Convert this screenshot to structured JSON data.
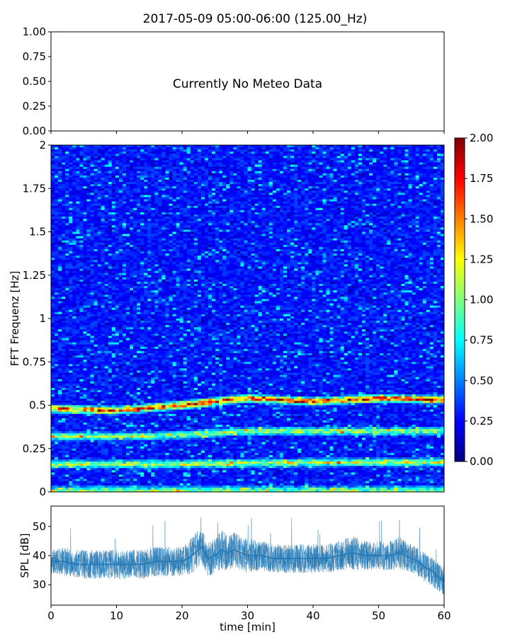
{
  "chart_data": [
    {
      "panel": "meteo",
      "type": "line",
      "title": "2017-05-09 05:00-06:00 (125.00_Hz)",
      "annotation": "Currently No Meteo Data",
      "ylim": [
        0,
        1
      ],
      "y_ticks": [
        "0.00",
        "0.25",
        "0.50",
        "0.75",
        "1.00"
      ],
      "series": []
    },
    {
      "panel": "spectrogram",
      "type": "heatmap",
      "ylabel": "FFT Frequenz [Hz]",
      "ylim": [
        0,
        2
      ],
      "xlim": [
        0,
        60
      ],
      "y_ticks": [
        "0",
        "0.25",
        "0.5",
        "0.75",
        "1",
        "1.25",
        "1.5",
        "1.75",
        "2"
      ],
      "colormap": "jet",
      "colorbar": {
        "range": [
          0,
          2
        ],
        "ticks": [
          "0.00",
          "0.25",
          "0.50",
          "0.75",
          "1.00",
          "1.25",
          "1.50",
          "1.75",
          "2.00"
        ]
      },
      "ridges": [
        {
          "freq_hz": [
            [
              0,
              0.48
            ],
            [
              10,
              0.47
            ],
            [
              20,
              0.5
            ],
            [
              30,
              0.54
            ],
            [
              40,
              0.52
            ],
            [
              50,
              0.54
            ],
            [
              60,
              0.53
            ]
          ],
          "intensity": 1.6
        },
        {
          "freq_hz": [
            [
              0,
              0.32
            ],
            [
              15,
              0.32
            ],
            [
              30,
              0.35
            ],
            [
              45,
              0.35
            ],
            [
              60,
              0.35
            ]
          ],
          "intensity": 0.9
        },
        {
          "freq_hz": [
            [
              0,
              0.16
            ],
            [
              20,
              0.16
            ],
            [
              40,
              0.17
            ],
            [
              60,
              0.17
            ]
          ],
          "intensity": 1.0
        },
        {
          "freq_hz": [
            [
              0,
              0.01
            ],
            [
              60,
              0.01
            ]
          ],
          "intensity": 0.8
        }
      ]
    },
    {
      "panel": "spl",
      "type": "line",
      "xlabel": "time [min]",
      "ylabel": "SPL [dB]",
      "xlim": [
        0,
        60
      ],
      "ylim": [
        23,
        57
      ],
      "x_ticks": [
        "0",
        "10",
        "20",
        "30",
        "40",
        "50",
        "60"
      ],
      "y_ticks": [
        "30",
        "40",
        "50"
      ],
      "line_color": "#1f77b4",
      "series": [
        {
          "x": [
            0,
            2,
            4,
            6,
            8,
            10,
            12,
            14,
            16,
            18,
            20,
            21,
            22,
            23,
            24,
            25,
            26,
            27,
            28,
            30,
            32,
            34,
            36,
            38,
            40,
            42,
            44,
            46,
            48,
            50,
            52,
            53,
            54,
            55,
            56,
            57,
            58,
            59,
            60
          ],
          "y": [
            38,
            38,
            37,
            37,
            37,
            37,
            37,
            37,
            38,
            38,
            38,
            39,
            41,
            43,
            39,
            40,
            42,
            41,
            42,
            40,
            40,
            39,
            39,
            39,
            39,
            39,
            40,
            41,
            40,
            40,
            40,
            41,
            40,
            39,
            38,
            36,
            35,
            33,
            31
          ],
          "spread": [
            4,
            5,
            5,
            5,
            5,
            5,
            5,
            5,
            5,
            5,
            5,
            6,
            7,
            6,
            6,
            6,
            7,
            6,
            6,
            6,
            5,
            5,
            5,
            5,
            5,
            5,
            5,
            6,
            5,
            5,
            5,
            6,
            5,
            5,
            5,
            5,
            5,
            5,
            5
          ]
        }
      ]
    }
  ]
}
